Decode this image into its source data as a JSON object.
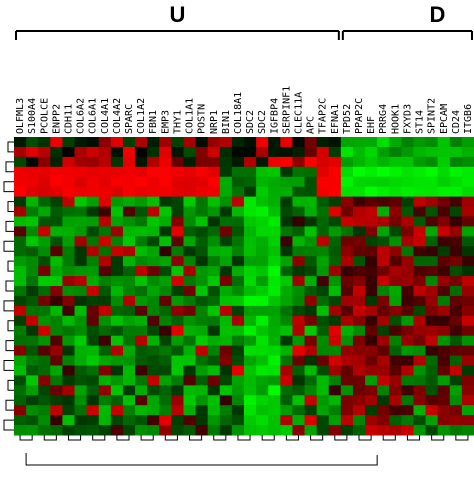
{
  "chart_data": {
    "type": "heatmap",
    "groups": [
      {
        "label": "U",
        "col_start": 0,
        "col_end": 26
      },
      {
        "label": "D",
        "col_start": 27,
        "col_end": 37
      }
    ],
    "columns": [
      "OLFML3",
      "S100A4",
      "PCOLCE",
      "ENPP2",
      "CDH11",
      "COL6A2",
      "COL6A1",
      "COL4A1",
      "COL4A2",
      "SPARC",
      "COL1A2",
      "FBN1",
      "EMP3",
      "THY1",
      "COL1A1",
      "POSTN",
      "NRP1",
      "BIN1",
      "COL18A1",
      "SDC2",
      "SDC2",
      "IGFBP4",
      "SERPINF1",
      "CLEC11A",
      "APC",
      "TFAP2C",
      "EFNA1",
      "TPD52",
      "PPAP2C",
      "EHF",
      "PRRG4",
      "HOOK1",
      "FXYD3",
      "ST14",
      "SPINT2",
      "EPCAM",
      "CD24",
      "ITGB6"
    ],
    "n_rows": 30,
    "values_description_colors": {
      "high": "#ff0000",
      "low": "#00ff00",
      "mid": "#000000"
    },
    "notes": "Expression heatmap; red = up, green = down, black = neutral. Rows clustered by dendrogram on left, columns clustered by dendrogram at bottom.",
    "row_blocks": [
      {
        "rows": [
          0,
          5
        ],
        "U_pattern": "mixed red",
        "D_pattern": "green"
      },
      {
        "rows": [
          3,
          5
        ],
        "U_pattern": "strong red",
        "D_pattern": "strong green"
      },
      {
        "rows": [
          6,
          29
        ],
        "U_pattern": "green",
        "D_pattern": "red/black"
      }
    ]
  },
  "colors": {
    "up": "#ff0000",
    "down": "#00ff00",
    "neutral": "#000000",
    "tree": "#000000"
  }
}
